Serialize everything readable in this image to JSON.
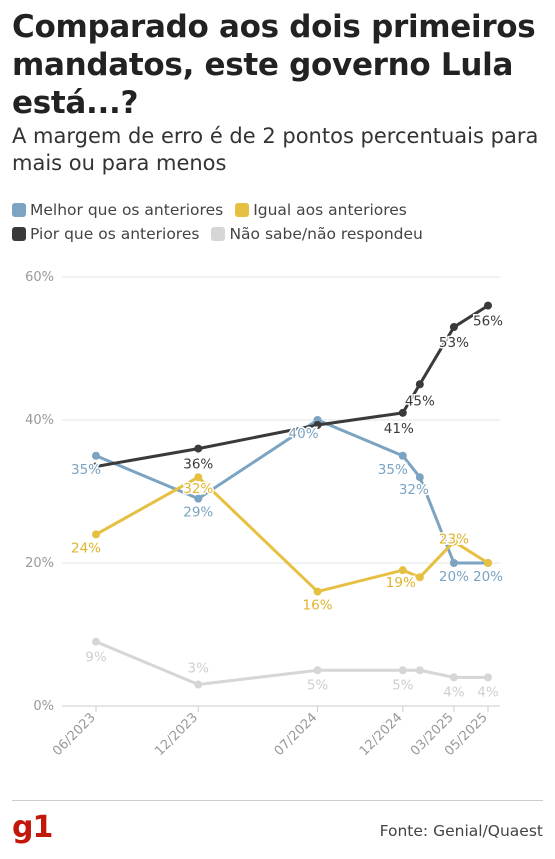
{
  "header": {
    "title": "Comparado aos dois primeiros mandatos, este governo Lula está...?",
    "subtitle": "A margem de erro é de 2 pontos percentuais para mais ou para menos"
  },
  "footer": {
    "logo": "g1",
    "source": "Fonte: Genial/Quaest"
  },
  "chart_data": {
    "type": "line",
    "title": "Comparado aos dois primeiros mandatos, este governo Lula está...?",
    "subtitle": "A margem de erro é de 2 pontos percentuais para mais ou para menos",
    "x_dates": [
      "2023-06",
      "2023-12",
      "2024-07",
      "2024-12",
      "2025-01",
      "2025-03",
      "2025-05"
    ],
    "tick_labels": [
      {
        "date": "2023-06",
        "label": "06/2023"
      },
      {
        "date": "2023-12",
        "label": "12/2023"
      },
      {
        "date": "2024-07",
        "label": "07/2024"
      },
      {
        "date": "2024-12",
        "label": "12/2024"
      },
      {
        "date": "2025-03",
        "label": "03/2025"
      },
      {
        "date": "2025-05",
        "label": "05/2025"
      }
    ],
    "y_ticks": [
      "0%",
      "20%",
      "40%",
      "60%"
    ],
    "ylim": [
      0,
      60
    ],
    "grid": true,
    "legend_position": "top",
    "series": [
      {
        "name": "Melhor que os anteriores",
        "color": "#7ba3c2",
        "values": [
          35,
          29,
          40,
          35,
          32,
          20,
          20
        ],
        "labels": [
          "35%",
          "29%",
          "40%",
          "35%",
          "32%",
          "20%",
          "20%"
        ]
      },
      {
        "name": "Igual aos anteriores",
        "color": "#e6c041",
        "values": [
          24,
          32,
          16,
          19,
          18,
          23,
          20
        ],
        "labels": [
          "24%",
          "32%",
          "16%",
          "19%",
          "",
          "23%",
          ""
        ]
      },
      {
        "name": "Pior que os anteriores",
        "color": "#3a3a3a",
        "values": [
          33.5,
          36,
          39.3,
          41,
          45,
          53,
          56
        ],
        "labels": [
          "",
          "36%",
          "",
          "41%",
          "45%",
          "53%",
          "56%"
        ]
      },
      {
        "name": "Não sabe/não respondeu",
        "color": "#d6d6d6",
        "values": [
          9,
          3,
          5,
          5,
          5,
          4,
          4
        ],
        "labels": [
          "9%",
          "3%",
          "5%",
          "5%",
          "",
          "4%",
          "4%"
        ]
      }
    ]
  }
}
